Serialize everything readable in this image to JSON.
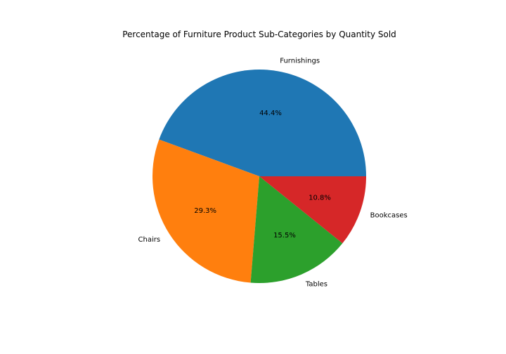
{
  "chart_data": {
    "type": "pie",
    "title": "Percentage of Furniture Product Sub-Categories by Quantity Sold",
    "slices": [
      {
        "label": "Furnishings",
        "value": 44.4,
        "pct_label": "44.4%",
        "color": "#1f77b4"
      },
      {
        "label": "Chairs",
        "value": 29.3,
        "pct_label": "29.3%",
        "color": "#ff7f0e"
      },
      {
        "label": "Tables",
        "value": 15.5,
        "pct_label": "15.5%",
        "color": "#2ca02c"
      },
      {
        "label": "Bookcases",
        "value": 10.8,
        "pct_label": "10.8%",
        "color": "#d62728"
      }
    ],
    "start_angle_deg": 0,
    "direction": "counterclockwise",
    "legend": "none"
  }
}
